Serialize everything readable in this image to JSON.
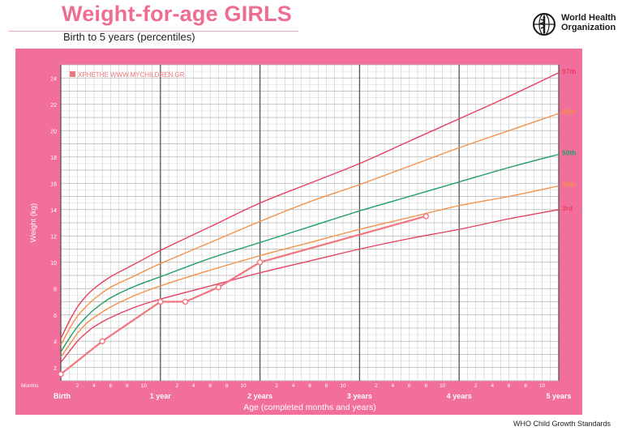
{
  "header": {
    "title": "Weight-for-age GIRLS",
    "subtitle": "Birth to 5 years (percentiles)",
    "org_line1": "World Health",
    "org_line2": "Organization",
    "logo_icon": "who-emblem-icon"
  },
  "footer": {
    "text": "WHO Child Growth Standards"
  },
  "colors": {
    "frame": "#f26e9c",
    "p97": "#e8405f",
    "p85": "#f39149",
    "p50": "#1d9e62",
    "p15": "#f39149",
    "p3": "#e8405f",
    "child": "#f2767e"
  },
  "chart_data": {
    "type": "line",
    "title": "Weight-for-age GIRLS",
    "subtitle": "Birth to 5 years (percentiles)",
    "xlabel": "Age (completed months and years)",
    "ylabel": "Weight (kg)",
    "months_label": "Months",
    "xlim": [
      0,
      60
    ],
    "ylim": [
      1,
      25
    ],
    "grid": true,
    "watermark": "XPHETHE WWW.MYCHILDREN.GR",
    "major_ticks": [
      {
        "month": 0,
        "label": "Birth"
      },
      {
        "month": 12,
        "label": "1 year"
      },
      {
        "month": 24,
        "label": "2 years"
      },
      {
        "month": 36,
        "label": "3 years"
      },
      {
        "month": 48,
        "label": "4 years"
      },
      {
        "month": 60,
        "label": "5 years"
      }
    ],
    "month_ticks": [
      2,
      4,
      6,
      8,
      10
    ],
    "y_ticks": [
      2,
      4,
      6,
      8,
      10,
      12,
      14,
      16,
      18,
      20,
      22,
      24
    ],
    "series": [
      {
        "name": "97th",
        "color": "#e8405f",
        "x": [
          0,
          1,
          2,
          3,
          4,
          6,
          9,
          12,
          18,
          24,
          30,
          36,
          42,
          48,
          54,
          60
        ],
        "y": [
          4.2,
          5.5,
          6.6,
          7.4,
          8.0,
          8.9,
          9.9,
          10.9,
          12.7,
          14.5,
          16.0,
          17.5,
          19.2,
          20.9,
          22.6,
          24.4
        ]
      },
      {
        "name": "85th",
        "color": "#f39149",
        "x": [
          0,
          1,
          2,
          3,
          4,
          6,
          9,
          12,
          18,
          24,
          30,
          36,
          42,
          48,
          54,
          60
        ],
        "y": [
          3.7,
          4.9,
          5.9,
          6.6,
          7.2,
          8.1,
          9.0,
          9.9,
          11.5,
          13.1,
          14.6,
          15.9,
          17.3,
          18.7,
          20.0,
          21.3
        ]
      },
      {
        "name": "50th",
        "color": "#1d9e62",
        "x": [
          0,
          1,
          2,
          3,
          4,
          6,
          9,
          12,
          18,
          24,
          30,
          36,
          42,
          48,
          54,
          60
        ],
        "y": [
          3.2,
          4.2,
          5.1,
          5.8,
          6.4,
          7.3,
          8.2,
          8.9,
          10.3,
          11.5,
          12.7,
          13.9,
          15.0,
          16.1,
          17.2,
          18.2
        ]
      },
      {
        "name": "15th",
        "color": "#f39149",
        "x": [
          0,
          1,
          2,
          3,
          4,
          6,
          9,
          12,
          18,
          24,
          30,
          36,
          42,
          48,
          54,
          60
        ],
        "y": [
          2.8,
          3.7,
          4.6,
          5.3,
          5.8,
          6.6,
          7.5,
          8.2,
          9.4,
          10.5,
          11.5,
          12.5,
          13.4,
          14.3,
          15.0,
          15.8
        ]
      },
      {
        "name": "3rd",
        "color": "#e8405f",
        "x": [
          0,
          1,
          2,
          3,
          4,
          6,
          9,
          12,
          18,
          24,
          30,
          36,
          42,
          48,
          54,
          60
        ],
        "y": [
          2.4,
          3.2,
          4.0,
          4.6,
          5.1,
          5.8,
          6.6,
          7.2,
          8.2,
          9.2,
          10.1,
          11.0,
          11.8,
          12.5,
          13.3,
          14.0
        ]
      },
      {
        "name": "",
        "color": "#f2767e",
        "x": [
          0,
          5,
          12,
          15,
          19,
          24,
          44
        ],
        "y": [
          1.5,
          4.0,
          7.0,
          7.0,
          8.1,
          10.0,
          13.5
        ]
      }
    ]
  }
}
